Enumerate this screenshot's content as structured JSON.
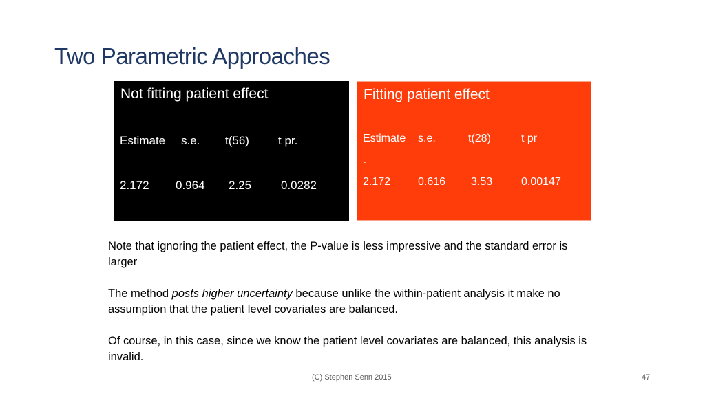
{
  "slide": {
    "title": "Two Parametric Approaches",
    "left_box": {
      "heading": "Not fitting patient effect",
      "headers": [
        "Estimate",
        "s.e.",
        "t(56)",
        "t pr."
      ],
      "values": [
        "2.172",
        "0.964",
        "2.25",
        "0.0282"
      ]
    },
    "right_box": {
      "heading": "Fitting patient effect",
      "headers": [
        "Estimate",
        "s.e.",
        "t(28)",
        "t pr"
      ],
      "dot": ".",
      "values": [
        "2.172",
        "0.616",
        "3.53",
        "0.00147"
      ]
    },
    "notes": {
      "p1": "Note that ignoring the patient effect, the P-value is less impressive and the standard error is larger",
      "p2_before": "The method ",
      "p2_italic": "posts higher uncertainty",
      "p2_after": " because unlike the within-patient analysis it make no assumption that the patient level covariates are balanced.",
      "p3": "Of course, in this case, since we know the patient level covariates are balanced, this analysis is invalid."
    },
    "footer": {
      "copyright": "(C) Stephen Senn 2015",
      "page_number": "47"
    },
    "colors": {
      "title": "#1f3864",
      "left_box_bg": "#000000",
      "right_box_bg": "#ff3d0a"
    }
  }
}
